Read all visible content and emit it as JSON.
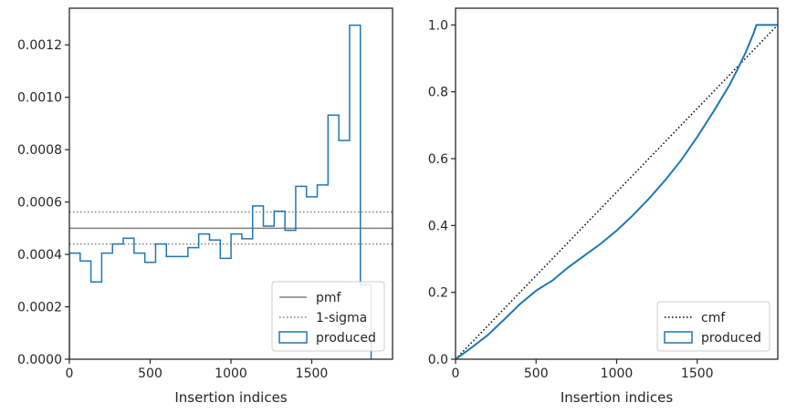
{
  "colors": {
    "produced": "#1f77b4",
    "pmf": "#808080",
    "sigma": "#808080",
    "cmf": "#000000",
    "axes": "#262626"
  },
  "chart_data": [
    {
      "type": "histogram-step",
      "xlabel": "Insertion indices",
      "ylabel": "",
      "xlim": [
        0,
        2000
      ],
      "ylim": [
        0,
        0.00134
      ],
      "xticks": [
        0,
        500,
        1000,
        1500
      ],
      "yticks": [
        0.0,
        0.0002,
        0.0004,
        0.0006,
        0.0008,
        0.001,
        0.0012
      ],
      "ytick_labels": [
        "0.0000",
        "0.0002",
        "0.0004",
        "0.0006",
        "0.0008",
        "0.0010",
        "0.0012"
      ],
      "legend_placement": "lower right",
      "legend": [
        "pmf",
        "1-sigma",
        "produced"
      ],
      "bin_width": 66.7,
      "bin_edges_start": 0,
      "produced_values": [
        0.000405,
        0.000375,
        0.000295,
        0.000405,
        0.00044,
        0.000462,
        0.000405,
        0.00037,
        0.00044,
        0.000392,
        0.000392,
        0.000426,
        0.000478,
        0.000455,
        0.000385,
        0.000478,
        0.00046,
        0.000585,
        0.000508,
        0.000565,
        0.000492,
        0.00066,
        0.00062,
        0.000665,
        0.000932,
        0.000835,
        0.001275,
        0.000285
      ],
      "pmf": 0.0005,
      "sigma_band": [
        0.00044,
        0.000562
      ]
    },
    {
      "type": "line",
      "xlabel": "Insertion indices",
      "ylabel": "",
      "xlim": [
        0,
        2000
      ],
      "ylim": [
        0.0,
        1.05
      ],
      "xticks": [
        0,
        500,
        1000,
        1500
      ],
      "yticks": [
        0.0,
        0.2,
        0.4,
        0.6,
        0.8,
        1.0
      ],
      "ytick_labels": [
        "0.0",
        "0.2",
        "0.4",
        "0.6",
        "0.8",
        "1.0"
      ],
      "legend_placement": "lower right",
      "legend": [
        "cmf",
        "produced"
      ],
      "cmf": {
        "x": [
          0,
          2000
        ],
        "y": [
          0.0,
          1.0
        ]
      },
      "produced": {
        "x": [
          0,
          100,
          200,
          300,
          400,
          500,
          600,
          700,
          800,
          900,
          1000,
          1100,
          1200,
          1300,
          1400,
          1500,
          1600,
          1700,
          1750,
          1800,
          1850,
          1867,
          2000
        ],
        "y": [
          0.0,
          0.035,
          0.072,
          0.118,
          0.165,
          0.205,
          0.235,
          0.275,
          0.31,
          0.345,
          0.385,
          0.43,
          0.48,
          0.535,
          0.595,
          0.665,
          0.74,
          0.82,
          0.867,
          0.917,
          0.975,
          1.0,
          1.0
        ]
      }
    }
  ]
}
